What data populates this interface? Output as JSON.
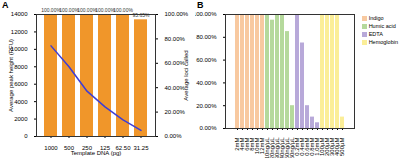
{
  "chart_data": [
    {
      "type": "bar",
      "title": "A",
      "categories": [
        "1000",
        "500",
        "250",
        "125",
        "62.50",
        "31.25"
      ],
      "xlabel": "Template DNA (pg)",
      "ylabel": "Average peak height (RFU)",
      "y2label": "Average loci called",
      "series": [
        {
          "type": "bar",
          "axis": "y2",
          "color": "#f0962a",
          "values": [
            100,
            100,
            100,
            100,
            100,
            95.65
          ],
          "value_labels": [
            "100.00%",
            "100.00%",
            "100.00%",
            "100.00%",
            "100.00%",
            "95.65%"
          ]
        },
        {
          "type": "line",
          "color": "#3d3dd6",
          "values": [
            10400,
            8000,
            5200,
            3400,
            1900,
            700
          ]
        }
      ],
      "ylim": [
        0,
        14000
      ],
      "yticks": [
        0,
        2000,
        4000,
        6000,
        8000,
        10000,
        12000,
        14000
      ],
      "y2lim": [
        0,
        100
      ],
      "y2ticks": [
        {
          "value": 0,
          "label": "0.00%"
        },
        {
          "value": 20,
          "label": "20.00%"
        },
        {
          "value": 40,
          "label": "40.00%"
        },
        {
          "value": 60,
          "label": "60.00%"
        },
        {
          "value": 80,
          "label": "80.00%"
        },
        {
          "value": 100,
          "label": "100.00%"
        }
      ],
      "data_labels": true
    },
    {
      "type": "bar",
      "title": "B",
      "categories": [
        "2mM",
        "4mM",
        "6mM",
        "8mM",
        "10mM",
        "12mM",
        "10ng/µL",
        "20ng/µL",
        "30ng/µL",
        "40ng/µL",
        "50ng/µL",
        "60ng/µL",
        "0.2mM",
        "0.4mM",
        "0.6mM",
        "0.8mM",
        "1.0mM",
        "100µM",
        "200µM",
        "300µM",
        "400µM",
        "500µM"
      ],
      "series": [
        {
          "name": "Indigo",
          "color": "#f8c9a0",
          "values": [
            100,
            100,
            100,
            100,
            100,
            100,
            null,
            null,
            null,
            null,
            null,
            null,
            null,
            null,
            null,
            null,
            null,
            null,
            null,
            null,
            null,
            null
          ]
        },
        {
          "name": "Humic acid",
          "color": "#b5d99c",
          "values": [
            null,
            null,
            null,
            null,
            null,
            null,
            100,
            95,
            100,
            100,
            85,
            20,
            null,
            null,
            null,
            null,
            null,
            null,
            null,
            null,
            null,
            null
          ]
        },
        {
          "name": "EDTA",
          "color": "#b8a9d9",
          "values": [
            null,
            null,
            null,
            null,
            null,
            null,
            null,
            null,
            null,
            null,
            null,
            null,
            100,
            75,
            20,
            10,
            5,
            null,
            null,
            null,
            null,
            null
          ]
        },
        {
          "name": "Hemoglobin",
          "color": "#fbee98",
          "values": [
            null,
            null,
            null,
            null,
            null,
            null,
            null,
            null,
            null,
            null,
            null,
            null,
            null,
            null,
            null,
            null,
            null,
            100,
            100,
            100,
            100,
            10
          ]
        }
      ],
      "ylim": [
        0,
        100
      ],
      "yticks": [
        {
          "value": 0,
          "label": "0.00%"
        },
        {
          "value": 20,
          "label": "20.00%"
        },
        {
          "value": 40,
          "label": "40.00%"
        },
        {
          "value": 60,
          "label": "60.00%"
        },
        {
          "value": 80,
          "label": "80.00%"
        },
        {
          "value": 100,
          "label": "100.00%"
        }
      ],
      "legend": "right"
    }
  ]
}
